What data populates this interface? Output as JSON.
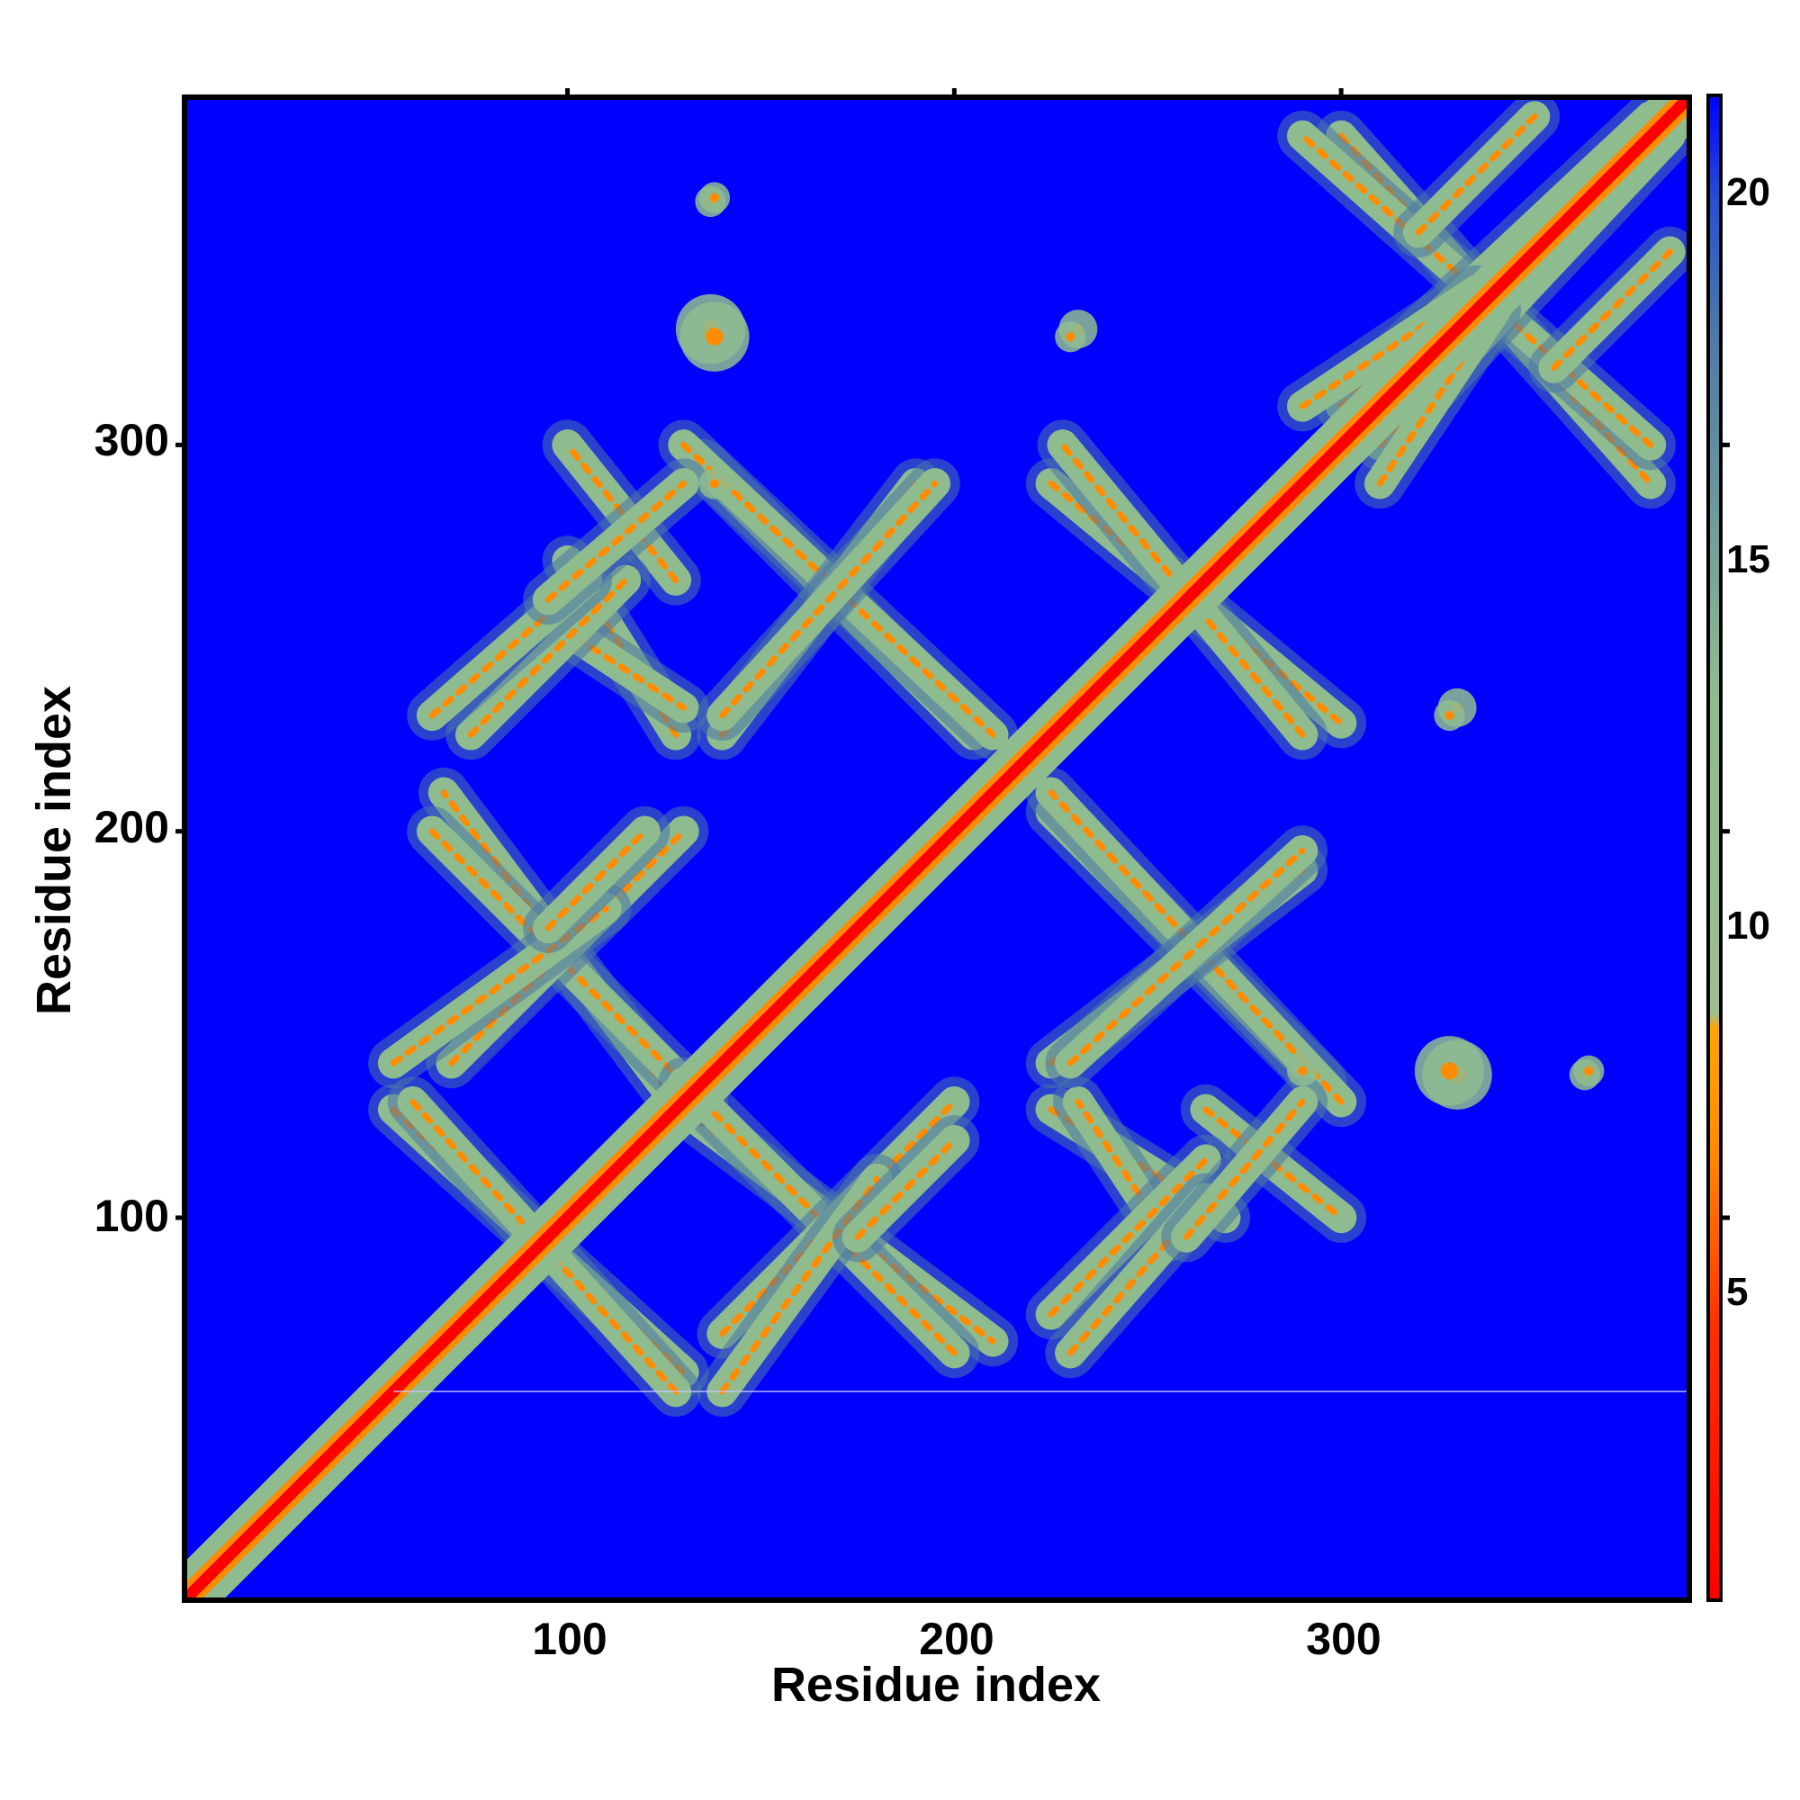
{
  "chart_data": {
    "type": "heatmap",
    "title": "",
    "xlabel": "Residue index",
    "ylabel": "Residue index",
    "xlim": [
      1,
      390
    ],
    "ylim": [
      1,
      390
    ],
    "x_ticks": [
      100,
      200,
      300
    ],
    "y_ticks": [
      100,
      200,
      300
    ],
    "x_tick_labels": [
      "100",
      "200",
      "300"
    ],
    "y_tick_labels": [
      "100",
      "200",
      "300"
    ],
    "colorbar": {
      "range": [
        0,
        21
      ],
      "ticks": [
        5,
        10,
        15,
        20
      ],
      "tick_labels": [
        "5",
        "10",
        "15",
        "20"
      ],
      "colors": [
        "#ff0000",
        "#ff8c00",
        "#8fbc8f",
        "#4a77a8",
        "#0000ff"
      ]
    },
    "background_color": "#0000ff",
    "diagonal": {
      "from": 1,
      "to": 390
    },
    "contact_bands": [
      {
        "kind": "anti",
        "x": [
          55,
          130
        ],
        "y": [
          128,
          60
        ]
      },
      {
        "kind": "anti",
        "x": [
          130,
          210
        ],
        "y": [
          128,
          68
        ]
      },
      {
        "kind": "anti",
        "x": [
          225,
          270
        ],
        "y": [
          128,
          100
        ]
      },
      {
        "kind": "anti",
        "x": [
          265,
          300
        ],
        "y": [
          128,
          100
        ]
      },
      {
        "kind": "anti",
        "x": [
          65,
          135
        ],
        "y": [
          200,
          130
        ]
      },
      {
        "kind": "anti",
        "x": [
          225,
          295
        ],
        "y": [
          205,
          135
        ]
      },
      {
        "kind": "anti",
        "x": [
          130,
          210
        ],
        "y": [
          300,
          225
        ]
      },
      {
        "kind": "anti",
        "x": [
          225,
          300
        ],
        "y": [
          290,
          228
        ]
      },
      {
        "kind": "anti",
        "x": [
          95,
          130
        ],
        "y": [
          255,
          232
        ]
      },
      {
        "kind": "par",
        "x": [
          140,
          200
        ],
        "y": [
          70,
          130
        ]
      },
      {
        "kind": "par",
        "x": [
          225,
          265
        ],
        "y": [
          75,
          115
        ]
      },
      {
        "kind": "par",
        "x": [
          55,
          110
        ],
        "y": [
          140,
          180
        ]
      },
      {
        "kind": "par",
        "x": [
          225,
          290
        ],
        "y": [
          140,
          190
        ]
      },
      {
        "kind": "par",
        "x": [
          95,
          120
        ],
        "y": [
          175,
          200
        ]
      },
      {
        "kind": "par",
        "x": [
          65,
          105
        ],
        "y": [
          230,
          265
        ]
      },
      {
        "kind": "par",
        "x": [
          140,
          195
        ],
        "y": [
          230,
          290
        ]
      },
      {
        "kind": "par",
        "x": [
          95,
          130
        ],
        "y": [
          260,
          290
        ]
      },
      {
        "kind": "anti",
        "x": [
          300,
          380
        ],
        "y": [
          380,
          290
        ]
      },
      {
        "kind": "par",
        "x": [
          300,
          380
        ],
        "y": [
          310,
          385
        ]
      },
      {
        "kind": "par",
        "x": [
          310,
          340
        ],
        "y": [
          290,
          335
        ]
      },
      {
        "kind": "par",
        "x": [
          355,
          385
        ],
        "y": [
          320,
          350
        ]
      }
    ],
    "contact_blobs": [
      {
        "x": 137,
        "y": 363,
        "r": 4
      },
      {
        "x": 137,
        "y": 330,
        "r": 9
      },
      {
        "x": 232,
        "y": 330,
        "r": 5
      },
      {
        "x": 328,
        "y": 230,
        "r": 4
      },
      {
        "x": 328,
        "y": 138,
        "r": 9
      },
      {
        "x": 364,
        "y": 138,
        "r": 4
      },
      {
        "x": 290,
        "y": 138,
        "r": 4
      }
    ],
    "gap_line_y": 55
  }
}
